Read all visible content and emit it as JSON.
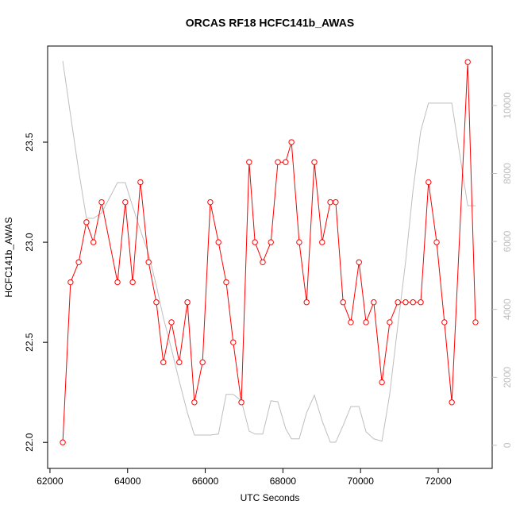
{
  "chart_data": {
    "type": "line",
    "title": "ORCAS RF18 HCFC141b_AWAS",
    "x_label": "UTC Seconds",
    "y_label": "HCFC141b_AWAS",
    "x": [
      62330,
      62530,
      62740,
      62940,
      63120,
      63330,
      63740,
      63940,
      64130,
      64330,
      64540,
      64740,
      64920,
      65130,
      65330,
      65540,
      65720,
      65930,
      66130,
      66340,
      66540,
      66720,
      66930,
      67130,
      67280,
      67480,
      67690,
      67870,
      68070,
      68220,
      68420,
      68610,
      68810,
      69010,
      69220,
      69360,
      69550,
      69750,
      69960,
      70140,
      70340,
      70550,
      70750,
      70960,
      71160,
      71350,
      71550,
      71750,
      71960,
      72160,
      72350,
      72760,
      72960
    ],
    "series": [
      {
        "color": "#ff0000",
        "markers": true,
        "values": [
          22.0,
          22.8,
          22.9,
          23.1,
          23.0,
          23.2,
          22.8,
          23.2,
          22.8,
          23.3,
          22.9,
          22.7,
          22.4,
          22.6,
          22.4,
          22.7,
          22.2,
          22.4,
          23.2,
          23.0,
          22.8,
          22.5,
          22.2,
          23.4,
          23.0,
          22.9,
          23.0,
          23.4,
          23.4,
          23.5,
          23.0,
          22.7,
          23.4,
          23.0,
          23.2,
          23.2,
          22.7,
          22.6,
          22.9,
          22.6,
          22.7,
          22.3,
          22.6,
          22.7,
          22.7,
          22.7,
          22.7,
          23.3,
          23.0,
          22.6,
          22.2,
          23.9,
          22.6
        ]
      },
      {
        "color": "#bebebe",
        "axis": "y2",
        "markers": false,
        "values": [
          11310,
          9720,
          8080,
          6680,
          6680,
          6840,
          7730,
          7730,
          7030,
          6330,
          5630,
          4700,
          3760,
          2830,
          1890,
          960,
          300,
          300,
          300,
          330,
          1500,
          1500,
          1310,
          420,
          330,
          330,
          1310,
          1280,
          490,
          190,
          190,
          960,
          1470,
          720,
          90,
          90,
          580,
          1140,
          1140,
          400,
          190,
          120,
          1500,
          3530,
          5400,
          7500,
          9250,
          10070,
          10070,
          10070,
          10070,
          7050,
          7050
        ]
      }
    ],
    "xlim": [
      61940,
      73390
    ],
    "xticks": [
      62000,
      64000,
      66000,
      68000,
      70000,
      72000
    ],
    "ylim": [
      21.87,
      23.98
    ],
    "yticks": [
      {
        "value": 22,
        "label": "22.0"
      },
      22.5,
      {
        "value": 23,
        "label": "23.0"
      },
      23.5
    ],
    "y2lim": [
      -680,
      11750
    ],
    "y2ticks": [
      0,
      2000,
      4000,
      6000,
      8000,
      10000
    ],
    "y2tick_color": "#bebebe"
  }
}
